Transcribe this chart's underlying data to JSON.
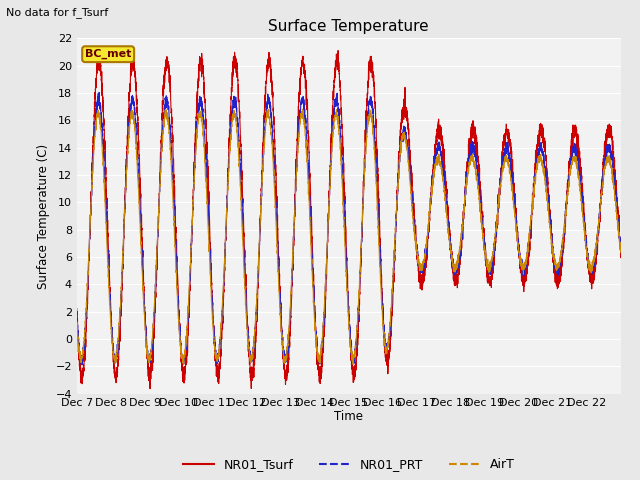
{
  "title": "Surface Temperature",
  "ylabel": "Surface Temperature (C)",
  "xlabel": "Time",
  "corner_text": "No data for f_Tsurf",
  "annotation_text": "BC_met",
  "ylim": [
    -4,
    22
  ],
  "yticks": [
    -4,
    -2,
    0,
    2,
    4,
    6,
    8,
    10,
    12,
    14,
    16,
    18,
    20,
    22
  ],
  "fig_bg_color": "#e8e8e8",
  "plot_bg_color": "#f2f2f2",
  "grid_color": "#ffffff",
  "line_colors": {
    "NR01_Tsurf": "#cc0000",
    "NR01_PRT": "#2222cc",
    "AirT": "#cc8800"
  },
  "x_tick_labels": [
    "Dec 7",
    "Dec 8",
    "Dec 9",
    "Dec 10",
    "Dec 11",
    "Dec 12",
    "Dec 13",
    "Dec 14",
    "Dec 15",
    "Dec 16",
    "Dec 17",
    "Dec 18",
    "Dec 19",
    "Dec 20",
    "Dec 21",
    "Dec 22",
    ""
  ]
}
